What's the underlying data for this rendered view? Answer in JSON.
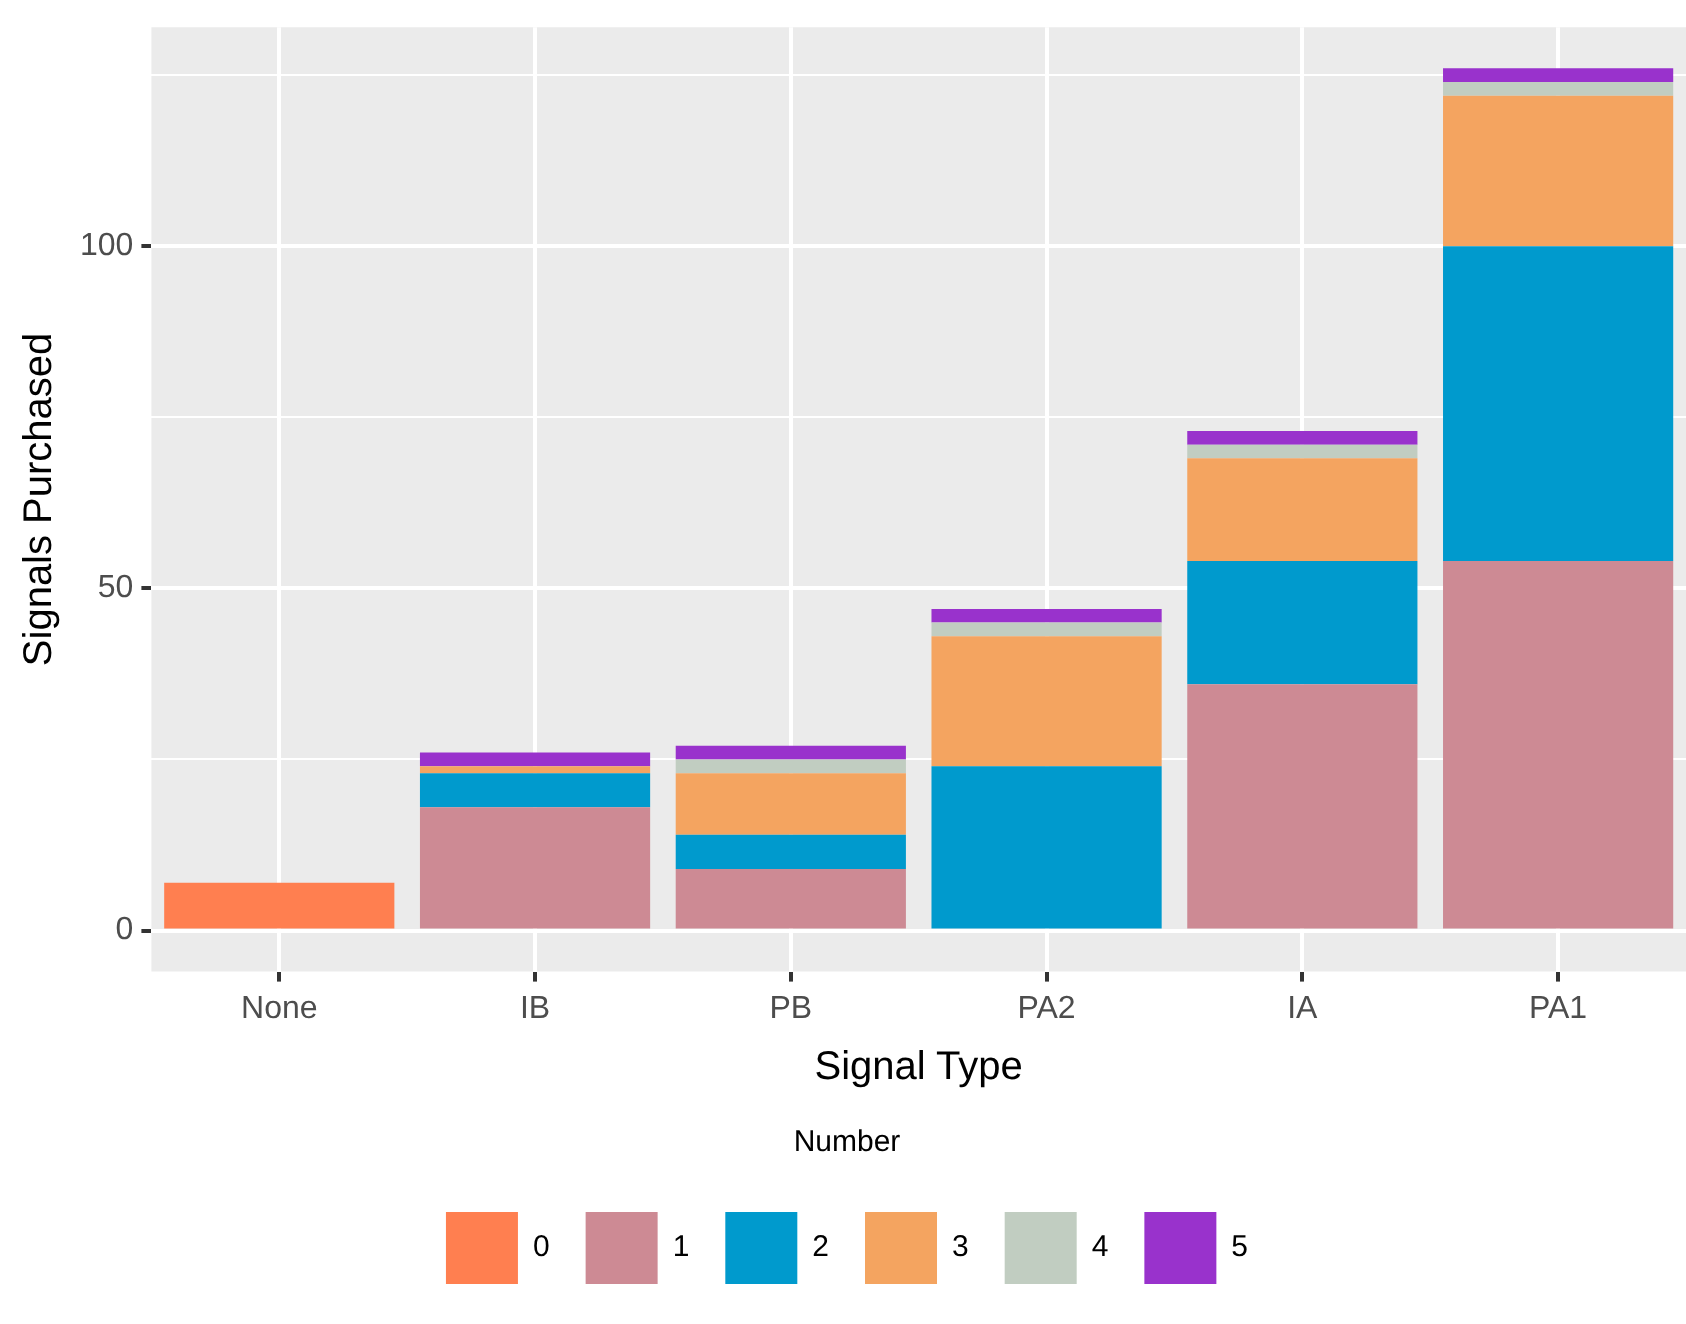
{
  "chart_data": {
    "type": "bar",
    "stacked": true,
    "xlabel": "Signal Type",
    "ylabel": "Signals Purchased",
    "legend_title": "Number",
    "legend": "bottom",
    "grid": true,
    "categories": [
      "None",
      "IB",
      "PB",
      "PA2",
      "IA",
      "PA1"
    ],
    "ylim": [
      -6,
      132
    ],
    "yticks": [
      0,
      {
        "value": 25,
        "label": null
      },
      50,
      {
        "value": 75,
        "label": null
      },
      100,
      {
        "value": 125,
        "label": null
      }
    ],
    "series": [
      {
        "name": "0",
        "color": "#ff7f50",
        "values": [
          7,
          0,
          0,
          0,
          0,
          0
        ]
      },
      {
        "name": "1",
        "color": "#cd8a94",
        "values": [
          0,
          18,
          9,
          0,
          36,
          54
        ]
      },
      {
        "name": "2",
        "color": "#009acd",
        "values": [
          0,
          5,
          5,
          24,
          18,
          46
        ]
      },
      {
        "name": "3",
        "color": "#f4a460",
        "values": [
          0,
          1,
          9,
          19,
          15,
          22
        ]
      },
      {
        "name": "4",
        "color": "#c1cdc1",
        "values": [
          0,
          0,
          2,
          2,
          2,
          2
        ]
      },
      {
        "name": "5",
        "color": "#9932cc",
        "values": [
          0,
          2,
          2,
          2,
          2,
          2
        ]
      }
    ]
  }
}
